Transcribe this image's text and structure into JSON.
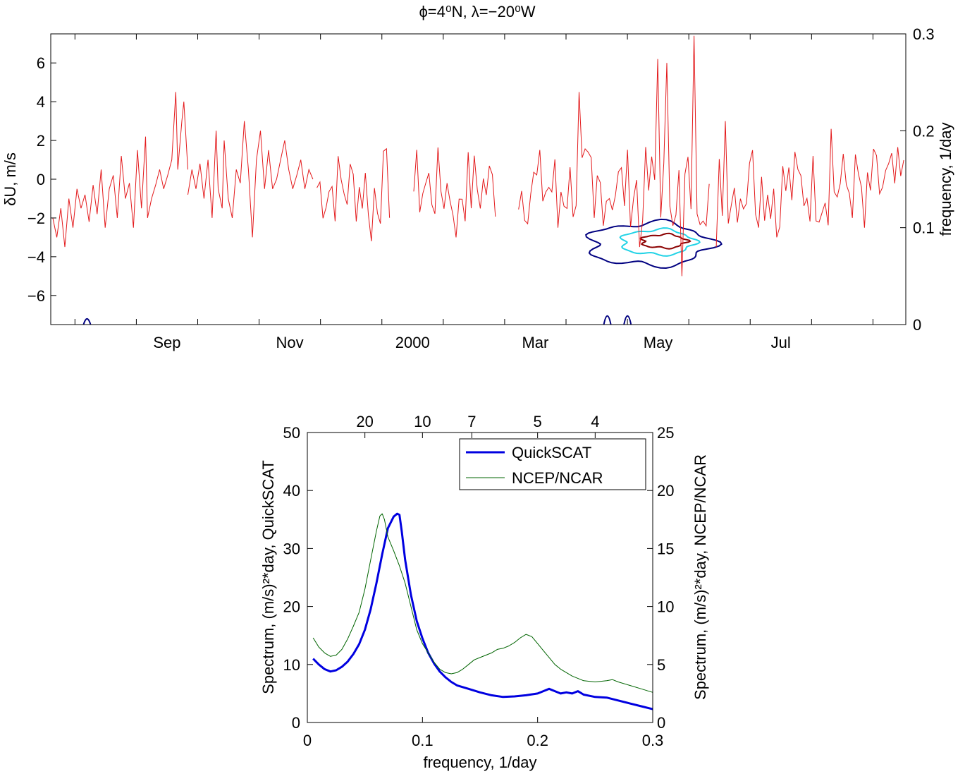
{
  "chart_data": [
    {
      "type": "line",
      "title": "ϕ=4⁰N, λ=−20⁰W",
      "ylabel_left": "δU, m/s",
      "ylabel_right": "frequency, 1/day",
      "xlim_days": [
        0,
        424
      ],
      "ylim_left": [
        -7.5,
        7.5
      ],
      "ylim_right": [
        0,
        0.3
      ],
      "x_tick_labels": [
        "Sep",
        "Nov",
        "2000",
        "Mar",
        "May",
        "Jul"
      ],
      "y_ticks_left": [
        -6,
        -4,
        -2,
        0,
        2,
        4,
        6
      ],
      "y_ticks_right": [
        0,
        0.1,
        0.2,
        0.3
      ],
      "grid": false,
      "colors": {
        "series": "#e31a1c",
        "contour_outer": "#000080",
        "contour_mid": "#22d3e6",
        "contour_inner": "#8b0000",
        "top_line": "#0000ff"
      },
      "series": [
        {
          "segments": [
            [
              [
                1,
                -2.0
              ],
              [
                3,
                -3.0
              ],
              [
                5,
                -1.5
              ],
              [
                7,
                -3.5
              ],
              [
                9,
                -1.0
              ],
              [
                11,
                -2.5
              ],
              [
                13,
                -0.5
              ],
              [
                15,
                -1.5
              ],
              [
                17,
                -0.8
              ],
              [
                19,
                -2.2
              ],
              [
                21,
                -0.3
              ],
              [
                23,
                -1.8
              ],
              [
                25,
                0.5
              ],
              [
                27,
                -2.5
              ],
              [
                29,
                -0.5
              ],
              [
                31,
                0.2
              ],
              [
                33,
                -2.0
              ],
              [
                35,
                1.2
              ],
              [
                37,
                -1.0
              ],
              [
                39,
                -0.2
              ],
              [
                41,
                -2.5
              ],
              [
                43,
                1.5
              ],
              [
                45,
                -1.5
              ],
              [
                47,
                2.2
              ],
              [
                48,
                -2.0
              ],
              [
                50,
                -1.0
              ],
              [
                52,
                -0.3
              ],
              [
                54,
                0.5
              ],
              [
                56,
                -0.5
              ],
              [
                58,
                0.2
              ],
              [
                60,
                1.0
              ],
              [
                62,
                4.5
              ],
              [
                63,
                0.5
              ],
              [
                65,
                3.0
              ],
              [
                66,
                4.0
              ],
              [
                68,
                0.5
              ]
            ],
            [
              [
                68,
                -0.8
              ],
              [
                70,
                0.5
              ],
              [
                72,
                -0.5
              ],
              [
                74,
                0.8
              ],
              [
                76,
                -1.0
              ],
              [
                78,
                1.0
              ],
              [
                80,
                -2.0
              ],
              [
                82,
                2.5
              ],
              [
                83,
                -0.5
              ],
              [
                85,
                -1.5
              ],
              [
                86,
                2.0
              ],
              [
                88,
                -1.0
              ],
              [
                90,
                -2.0
              ],
              [
                92,
                0.5
              ],
              [
                94,
                -0.2
              ],
              [
                96,
                3.0
              ],
              [
                98,
                0.5
              ],
              [
                100,
                -3.0
              ],
              [
                102,
                1.0
              ],
              [
                104,
                2.5
              ],
              [
                106,
                -0.5
              ],
              [
                108,
                1.5
              ],
              [
                110,
                -0.5
              ],
              [
                112,
                0.0
              ],
              [
                114,
                1.0
              ],
              [
                116,
                2.0
              ],
              [
                118,
                0.5
              ],
              [
                120,
                -0.5
              ],
              [
                122,
                0.2
              ],
              [
                124,
                1.0
              ],
              [
                126,
                -0.5
              ],
              [
                128,
                0.5
              ],
              [
                130,
                0.0
              ]
            ]
          ]
        }
      ]
    },
    {
      "type": "line",
      "title": "",
      "xlabel": "frequency, 1/day",
      "top_axis_label": "",
      "ylabel_left": "Spectrum, (m/s)²*day, QuickSCAT",
      "ylabel_right": "Spectrum, (m/s)²*day, NCEP/NCAR",
      "xlim": [
        0,
        0.3
      ],
      "ylim_left": [
        0,
        50
      ],
      "ylim_right": [
        0,
        25
      ],
      "x_ticks": [
        0,
        0.1,
        0.2,
        0.3
      ],
      "x_tick_labels": [
        "0",
        "0.1",
        "0.2",
        "0.3"
      ],
      "top_ticks": [
        20,
        10,
        7,
        5,
        4
      ],
      "y_ticks_left": [
        0,
        10,
        20,
        30,
        40,
        50
      ],
      "y_ticks_right": [
        0,
        5,
        10,
        15,
        20,
        25
      ],
      "legend_placement": "top-right",
      "grid": false,
      "series": [
        {
          "name": "QuickSCAT",
          "axis": "left",
          "color": "#0000e0",
          "x": [
            0.005,
            0.01,
            0.015,
            0.02,
            0.025,
            0.03,
            0.035,
            0.04,
            0.045,
            0.05,
            0.055,
            0.06,
            0.065,
            0.07,
            0.075,
            0.078,
            0.08,
            0.082,
            0.085,
            0.09,
            0.095,
            0.1,
            0.105,
            0.11,
            0.115,
            0.12,
            0.125,
            0.13,
            0.14,
            0.15,
            0.16,
            0.17,
            0.18,
            0.19,
            0.2,
            0.205,
            0.21,
            0.215,
            0.22,
            0.225,
            0.23,
            0.235,
            0.24,
            0.25,
            0.26,
            0.27,
            0.28,
            0.29,
            0.3
          ],
          "values": [
            11.0,
            10.0,
            9.2,
            8.8,
            9.0,
            9.6,
            10.5,
            11.8,
            13.5,
            16.0,
            19.5,
            24.0,
            29.0,
            33.5,
            35.5,
            36.0,
            35.8,
            33.0,
            28.0,
            22.0,
            17.5,
            14.5,
            12.0,
            10.2,
            8.8,
            7.8,
            7.0,
            6.4,
            5.8,
            5.2,
            4.7,
            4.4,
            4.5,
            4.7,
            5.0,
            5.4,
            5.8,
            5.4,
            5.0,
            5.2,
            5.0,
            5.4,
            4.8,
            4.4,
            4.3,
            3.8,
            3.3,
            2.8,
            2.3
          ]
        },
        {
          "name": "NCEP/NCAR",
          "axis": "right",
          "color": "#006400",
          "x": [
            0.005,
            0.01,
            0.015,
            0.02,
            0.025,
            0.03,
            0.035,
            0.04,
            0.045,
            0.05,
            0.055,
            0.06,
            0.063,
            0.065,
            0.067,
            0.07,
            0.075,
            0.08,
            0.085,
            0.09,
            0.095,
            0.1,
            0.105,
            0.11,
            0.115,
            0.12,
            0.125,
            0.13,
            0.135,
            0.14,
            0.145,
            0.15,
            0.155,
            0.16,
            0.165,
            0.17,
            0.175,
            0.18,
            0.185,
            0.19,
            0.195,
            0.2,
            0.205,
            0.21,
            0.215,
            0.22,
            0.23,
            0.24,
            0.25,
            0.26,
            0.265,
            0.27,
            0.28,
            0.29,
            0.3
          ],
          "values": [
            7.3,
            6.5,
            6.0,
            5.7,
            5.8,
            6.3,
            7.2,
            8.3,
            9.5,
            11.5,
            14.0,
            16.5,
            17.8,
            18.0,
            17.5,
            16.0,
            14.8,
            13.5,
            12.0,
            10.0,
            8.0,
            6.8,
            6.0,
            5.2,
            4.6,
            4.3,
            4.2,
            4.3,
            4.6,
            5.0,
            5.4,
            5.6,
            5.8,
            6.0,
            6.3,
            6.4,
            6.6,
            6.9,
            7.3,
            7.6,
            7.4,
            6.8,
            6.2,
            5.6,
            5.0,
            4.6,
            4.0,
            3.6,
            3.5,
            3.6,
            3.7,
            3.5,
            3.2,
            2.9,
            2.6
          ]
        }
      ]
    }
  ]
}
